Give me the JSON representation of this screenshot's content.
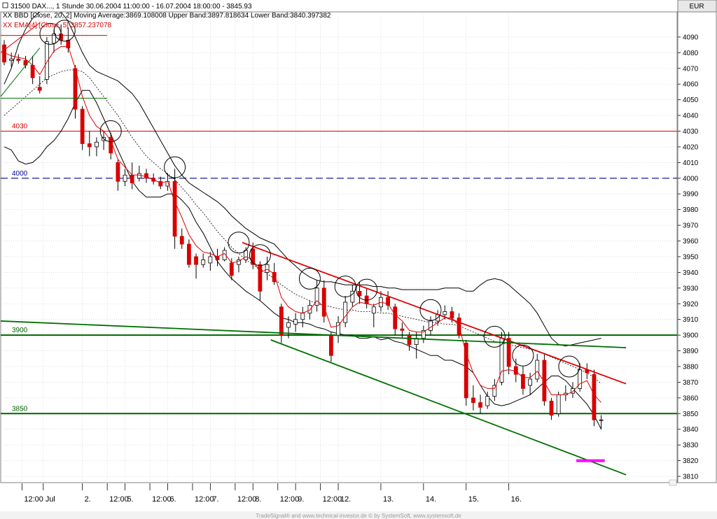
{
  "chart_data": {
    "type": "candlestick",
    "header": {
      "line1": "31500  DAX..., 1 Stunde    30.06.2004 11:00:00 - 16.07.2004 18:00:00 - 3845.93",
      "line2": "XX BBD [Close, 20, 2] Moving Average:3869.108008 Upper Band:3897.818634 Lower Band:3840.397382",
      "line3": "XX EMA[4] [Close, 5] 3857.237078"
    },
    "currency": "EUR",
    "ylim": [
      3806,
      4106
    ],
    "y_ticks": [
      3810,
      3820,
      3830,
      3840,
      3850,
      3860,
      3870,
      3880,
      3890,
      3900,
      3910,
      3920,
      3930,
      3940,
      3950,
      3960,
      3970,
      3980,
      3990,
      4000,
      4010,
      4020,
      4030,
      4040,
      4050,
      4060,
      4070,
      4080,
      4090
    ],
    "x_ticks": [
      {
        "label": "12:00",
        "t": 2.5
      },
      {
        "label": "Jul",
        "t": 5.5
      },
      {
        "label": "2.",
        "t": 11
      },
      {
        "label": "12:00",
        "t": 14.5
      },
      {
        "label": "5.",
        "t": 17
      },
      {
        "label": "12:00",
        "t": 20.5
      },
      {
        "label": "6.",
        "t": 23
      },
      {
        "label": "12:00",
        "t": 26.5
      },
      {
        "label": "7.",
        "t": 29
      },
      {
        "label": "12:00",
        "t": 32.5
      },
      {
        "label": "8.",
        "t": 35
      },
      {
        "label": "12:00",
        "t": 38.5
      },
      {
        "label": "9.",
        "t": 41
      },
      {
        "label": "12:00",
        "t": 44.5
      },
      {
        "label": "12.",
        "t": 47
      },
      {
        "label": "13.",
        "t": 53
      },
      {
        "label": "14.",
        "t": 59
      },
      {
        "label": "15.",
        "t": 65
      },
      {
        "label": "16.",
        "t": 71
      }
    ],
    "candles": [
      {
        "o": 4085,
        "h": 4088,
        "l": 4072,
        "c": 4074
      },
      {
        "o": 4075,
        "h": 4080,
        "l": 4071,
        "c": 4076
      },
      {
        "o": 4076,
        "h": 4079,
        "l": 4073,
        "c": 4075
      },
      {
        "o": 4075,
        "h": 4078,
        "l": 4070,
        "c": 4072
      },
      {
        "o": 4072,
        "h": 4078,
        "l": 4060,
        "c": 4064
      },
      {
        "o": 4058,
        "h": 4065,
        "l": 4054,
        "c": 4056
      },
      {
        "o": 4063,
        "h": 4090,
        "l": 4060,
        "c": 4087
      },
      {
        "o": 4086,
        "h": 4095,
        "l": 4080,
        "c": 4092
      },
      {
        "o": 4092,
        "h": 4098,
        "l": 4085,
        "c": 4088
      },
      {
        "o": 4088,
        "h": 4096,
        "l": 4080,
        "c": 4083
      },
      {
        "o": 4070,
        "h": 4072,
        "l": 4038,
        "c": 4044
      },
      {
        "o": 4044,
        "h": 4046,
        "l": 4018,
        "c": 4022
      },
      {
        "o": 4022,
        "h": 4030,
        "l": 4014,
        "c": 4020
      },
      {
        "o": 4020,
        "h": 4026,
        "l": 4014,
        "c": 4023
      },
      {
        "o": 4024,
        "h": 4030,
        "l": 4018,
        "c": 4026
      },
      {
        "o": 4026,
        "h": 4029,
        "l": 4012,
        "c": 4016
      },
      {
        "o": 4010,
        "h": 4012,
        "l": 3992,
        "c": 3998
      },
      {
        "o": 3998,
        "h": 4006,
        "l": 3995,
        "c": 4002
      },
      {
        "o": 4002,
        "h": 4010,
        "l": 3993,
        "c": 3997
      },
      {
        "o": 4000,
        "h": 4008,
        "l": 3998,
        "c": 4003
      },
      {
        "o": 4003,
        "h": 4006,
        "l": 3997,
        "c": 4000
      },
      {
        "o": 4000,
        "h": 4003,
        "l": 3996,
        "c": 3998
      },
      {
        "o": 3998,
        "h": 4001,
        "l": 3993,
        "c": 3995
      },
      {
        "o": 3995,
        "h": 4003,
        "l": 3992,
        "c": 3998
      },
      {
        "o": 3998,
        "h": 4006,
        "l": 3955,
        "c": 3963
      },
      {
        "o": 3963,
        "h": 3968,
        "l": 3955,
        "c": 3958
      },
      {
        "o": 3958,
        "h": 3961,
        "l": 3943,
        "c": 3945
      },
      {
        "o": 3950,
        "h": 3952,
        "l": 3936,
        "c": 3945
      },
      {
        "o": 3945,
        "h": 3952,
        "l": 3943,
        "c": 3948
      },
      {
        "o": 3946,
        "h": 3953,
        "l": 3941,
        "c": 3950
      },
      {
        "o": 3950,
        "h": 3955,
        "l": 3944,
        "c": 3948
      },
      {
        "o": 3948,
        "h": 3956,
        "l": 3947,
        "c": 3954
      },
      {
        "o": 3946,
        "h": 3949,
        "l": 3935,
        "c": 3938
      },
      {
        "o": 3945,
        "h": 3950,
        "l": 3940,
        "c": 3948
      },
      {
        "o": 3948,
        "h": 3956,
        "l": 3946,
        "c": 3954
      },
      {
        "o": 3955,
        "h": 3959,
        "l": 3942,
        "c": 3945
      },
      {
        "o": 3945,
        "h": 3947,
        "l": 3922,
        "c": 3928
      },
      {
        "o": 3940,
        "h": 3950,
        "l": 3935,
        "c": 3945
      },
      {
        "o": 3940,
        "h": 3946,
        "l": 3932,
        "c": 3934
      },
      {
        "o": 3918,
        "h": 3920,
        "l": 3895,
        "c": 3900
      },
      {
        "o": 3905,
        "h": 3912,
        "l": 3898,
        "c": 3908
      },
      {
        "o": 3907,
        "h": 3914,
        "l": 3902,
        "c": 3910
      },
      {
        "o": 3910,
        "h": 3918,
        "l": 3905,
        "c": 3914
      },
      {
        "o": 3914,
        "h": 3922,
        "l": 3910,
        "c": 3919
      },
      {
        "o": 3919,
        "h": 3935,
        "l": 3915,
        "c": 3930
      },
      {
        "o": 3930,
        "h": 3935,
        "l": 3908,
        "c": 3912
      },
      {
        "o": 3900,
        "h": 3902,
        "l": 3883,
        "c": 3887
      },
      {
        "o": 3900,
        "h": 3912,
        "l": 3895,
        "c": 3908
      },
      {
        "o": 3908,
        "h": 3925,
        "l": 3905,
        "c": 3921
      },
      {
        "o": 3921,
        "h": 3932,
        "l": 3918,
        "c": 3928
      },
      {
        "o": 3928,
        "h": 3934,
        "l": 3920,
        "c": 3925
      },
      {
        "o": 3925,
        "h": 3930,
        "l": 3917,
        "c": 3920
      },
      {
        "o": 3914,
        "h": 3920,
        "l": 3905,
        "c": 3918
      },
      {
        "o": 3918,
        "h": 3928,
        "l": 3915,
        "c": 3924
      },
      {
        "o": 3924,
        "h": 3928,
        "l": 3916,
        "c": 3919
      },
      {
        "o": 3918,
        "h": 3920,
        "l": 3900,
        "c": 3904
      },
      {
        "o": 3904,
        "h": 3908,
        "l": 3898,
        "c": 3903
      },
      {
        "o": 3900,
        "h": 3902,
        "l": 3890,
        "c": 3894
      },
      {
        "o": 3894,
        "h": 3902,
        "l": 3885,
        "c": 3898
      },
      {
        "o": 3898,
        "h": 3906,
        "l": 3895,
        "c": 3903
      },
      {
        "o": 3903,
        "h": 3912,
        "l": 3900,
        "c": 3909
      },
      {
        "o": 3909,
        "h": 3916,
        "l": 3906,
        "c": 3913
      },
      {
        "o": 3913,
        "h": 3919,
        "l": 3910,
        "c": 3915
      },
      {
        "o": 3915,
        "h": 3918,
        "l": 3908,
        "c": 3911
      },
      {
        "o": 3911,
        "h": 3914,
        "l": 3898,
        "c": 3900
      },
      {
        "o": 3895,
        "h": 3897,
        "l": 3855,
        "c": 3860
      },
      {
        "o": 3860,
        "h": 3868,
        "l": 3852,
        "c": 3857
      },
      {
        "o": 3857,
        "h": 3862,
        "l": 3850,
        "c": 3854
      },
      {
        "o": 3855,
        "h": 3864,
        "l": 3853,
        "c": 3861
      },
      {
        "o": 3861,
        "h": 3872,
        "l": 3858,
        "c": 3868
      },
      {
        "o": 3870,
        "h": 3902,
        "l": 3868,
        "c": 3898
      },
      {
        "o": 3898,
        "h": 3902,
        "l": 3875,
        "c": 3880
      },
      {
        "o": 3880,
        "h": 3885,
        "l": 3870,
        "c": 3875
      },
      {
        "o": 3875,
        "h": 3880,
        "l": 3862,
        "c": 3866
      },
      {
        "o": 3868,
        "h": 3876,
        "l": 3862,
        "c": 3872
      },
      {
        "o": 3872,
        "h": 3888,
        "l": 3870,
        "c": 3884
      },
      {
        "o": 3884,
        "h": 3888,
        "l": 3855,
        "c": 3858
      },
      {
        "o": 3858,
        "h": 3860,
        "l": 3846,
        "c": 3849
      },
      {
        "o": 3850,
        "h": 3864,
        "l": 3848,
        "c": 3862
      },
      {
        "o": 3862,
        "h": 3868,
        "l": 3858,
        "c": 3863
      },
      {
        "o": 3863,
        "h": 3870,
        "l": 3860,
        "c": 3866
      },
      {
        "o": 3866,
        "h": 3882,
        "l": 3864,
        "c": 3878
      },
      {
        "o": 3878,
        "h": 3882,
        "l": 3872,
        "c": 3876
      },
      {
        "o": 3875,
        "h": 3878,
        "l": 3842,
        "c": 3846
      },
      {
        "o": 3846,
        "h": 3849,
        "l": 3840,
        "c": 3846
      }
    ],
    "ema": [
      4080,
      4078,
      4077,
      4076,
      4072,
      4066,
      4074,
      4081,
      4084,
      4084,
      4070,
      4052,
      4040,
      4033,
      4030,
      4024,
      4012,
      4007,
      4002,
      4002,
      4001,
      3999,
      3997,
      3998,
      3985,
      3975,
      3964,
      3957,
      3953,
      3952,
      3950,
      3952,
      3946,
      3947,
      3950,
      3948,
      3940,
      3942,
      3939,
      3924,
      3918,
      3915,
      3914,
      3916,
      3922,
      3918,
      3905,
      3906,
      3912,
      3918,
      3921,
      3920,
      3919,
      3921,
      3920,
      3913,
      3909,
      3903,
      3902,
      3902,
      3905,
      3908,
      3911,
      3911,
      3906,
      3888,
      3876,
      3868,
      3866,
      3866,
      3877,
      3878,
      3877,
      3873,
      3873,
      3877,
      3870,
      3862,
      3862,
      3862,
      3864,
      3869,
      3871,
      3862,
      3857
    ],
    "ma": [
      4040,
      4044,
      4048,
      4052,
      4056,
      4060,
      4064,
      4066,
      4068,
      4069,
      4069,
      4068,
      4064,
      4058,
      4052,
      4046,
      4040,
      4033,
      4026,
      4020,
      4014,
      4010,
      4006,
      4003,
      3999,
      3994,
      3989,
      3983,
      3978,
      3972,
      3966,
      3961,
      3956,
      3952,
      3948,
      3945,
      3942,
      3939,
      3936,
      3932,
      3929,
      3926,
      3924,
      3922,
      3920,
      3919,
      3918,
      3917,
      3916,
      3916,
      3915,
      3915,
      3915,
      3914,
      3914,
      3913,
      3912,
      3911,
      3910,
      3909,
      3908,
      3908,
      3907,
      3907,
      3906,
      3904,
      3902,
      3900,
      3898,
      3896,
      3895,
      3894,
      3893,
      3892,
      3891,
      3890,
      3888,
      3886,
      3884,
      3882,
      3880,
      3878,
      3876,
      3873,
      3869
    ],
    "upper": [
      4060,
      4070,
      4085,
      4095,
      4102,
      4106,
      4108,
      4108,
      4106,
      4100,
      4090,
      4080,
      4072,
      4068,
      4066,
      4064,
      4062,
      4058,
      4054,
      4048,
      4040,
      4032,
      4024,
      4016,
      4008,
      4002,
      3997,
      3994,
      3991,
      3988,
      3985,
      3981,
      3976,
      3972,
      3968,
      3965,
      3962,
      3960,
      3958,
      3953,
      3948,
      3944,
      3940,
      3937,
      3935,
      3934,
      3934,
      3933,
      3932,
      3932,
      3932,
      3932,
      3931,
      3931,
      3930,
      3930,
      3929,
      3929,
      3929,
      3929,
      3929,
      3929,
      3930,
      3930,
      3930,
      3928,
      3928,
      3932,
      3935,
      3936,
      3935,
      3932,
      3928,
      3924,
      3920,
      3914,
      3906,
      3898,
      3894,
      3893,
      3894,
      3895,
      3896,
      3897,
      3898
    ],
    "lower": [
      4020,
      4018,
      4011,
      4009,
      4010,
      4014,
      4020,
      4024,
      4030,
      4038,
      4048,
      4056,
      4056,
      4048,
      4038,
      4028,
      4018,
      4008,
      3998,
      3992,
      3988,
      3988,
      3988,
      3990,
      3990,
      3986,
      3981,
      3972,
      3965,
      3956,
      3947,
      3941,
      3936,
      3932,
      3928,
      3925,
      3922,
      3918,
      3914,
      3911,
      3910,
      3908,
      3908,
      3907,
      3905,
      3904,
      3902,
      3901,
      3900,
      3900,
      3898,
      3898,
      3899,
      3897,
      3898,
      3896,
      3895,
      3893,
      3891,
      3889,
      3887,
      3887,
      3884,
      3884,
      3882,
      3880,
      3876,
      3868,
      3861,
      3856,
      3855,
      3856,
      3858,
      3860,
      3862,
      3866,
      3870,
      3874,
      3874,
      3871,
      3866,
      3861,
      3856,
      3849,
      3840
    ],
    "levels": [
      {
        "label": "4030",
        "value": 4030,
        "color": "#d80000"
      },
      {
        "label": "4000",
        "value": 4000,
        "color": "#00008b",
        "dashed": true
      },
      {
        "label": "3900",
        "value": 3900,
        "color": "#006400"
      },
      {
        "label": "3850",
        "value": 3850,
        "color": "#006400"
      }
    ],
    "trendlines": [
      {
        "color": "#e00000",
        "from": [
          33.5,
          3959
        ],
        "to": [
          87.5,
          3869
        ]
      },
      {
        "color": "#007000",
        "from": [
          -0.5,
          3909
        ],
        "to": [
          87.5,
          3892
        ]
      },
      {
        "color": "#007000",
        "from": [
          37.5,
          3897
        ],
        "to": [
          87.5,
          3811
        ]
      }
    ],
    "left_segments": [
      {
        "color": "#e00000",
        "from": [
          -0.5,
          4091
        ],
        "to": [
          14.5,
          4091
        ]
      },
      {
        "color": "#007000",
        "from": [
          -0.5,
          4051
        ],
        "to": [
          14.5,
          4051
        ]
      },
      {
        "color": "#e00000",
        "from": [
          -0.5,
          4080
        ],
        "to": [
          5,
          4099
        ]
      },
      {
        "color": "#007000",
        "from": [
          -0.5,
          4052
        ],
        "to": [
          5,
          4083
        ]
      }
    ],
    "target_marker": {
      "color": "#ff00ff",
      "from": [
        80.5,
        3820
      ],
      "to": [
        84.5,
        3820
      ]
    },
    "circles": [
      {
        "t": 6.5,
        "v": 4092
      },
      {
        "t": 8.5,
        "v": 4094
      },
      {
        "t": 15,
        "v": 4030
      },
      {
        "t": 24,
        "v": 4007
      },
      {
        "t": 33,
        "v": 3959
      },
      {
        "t": 36,
        "v": 3951
      },
      {
        "t": 43,
        "v": 3936
      },
      {
        "t": 48,
        "v": 3931
      },
      {
        "t": 51,
        "v": 3929
      },
      {
        "t": 60,
        "v": 3916
      },
      {
        "t": 69,
        "v": 3899
      },
      {
        "t": 73,
        "v": 3887
      },
      {
        "t": 79.5,
        "v": 3880
      }
    ],
    "footer": "TradeSignal® and www.technical-investor.de © by  SystemSoft, www.systemsoft.de"
  }
}
